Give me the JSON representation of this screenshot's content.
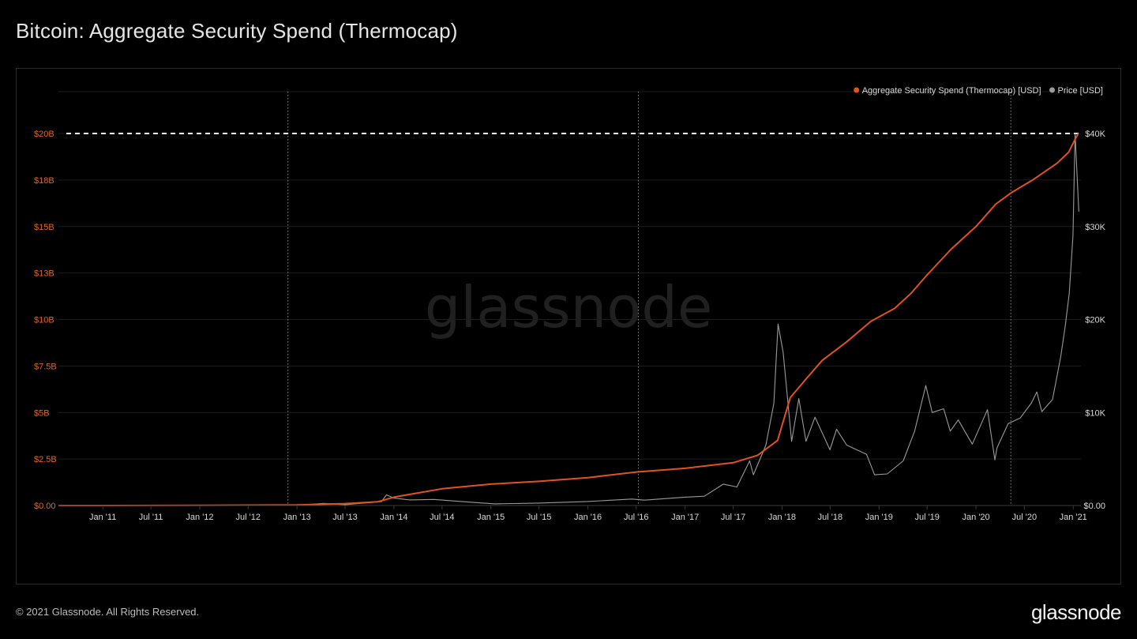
{
  "title": "Bitcoin: Aggregate Security Spend (Thermocap)",
  "footer": "© 2021 Glassnode. All Rights Reserved.",
  "brand": "glassnode",
  "watermark": "glassnode",
  "colors": {
    "thermocap": "#e0531f",
    "price": "#9a9a9a",
    "grid": "#1d1d1d",
    "left_axis_text": "#e0662c",
    "right_axis_text": "#d9d9d9",
    "background": "#000000"
  },
  "chart_data": {
    "type": "line",
    "xlabel": "",
    "x_range": [
      "2010-07-18",
      "2021-01-30"
    ],
    "x_ticks": [
      {
        "date": "2011-01-01",
        "label": "Jan '11"
      },
      {
        "date": "2011-07-01",
        "label": "Jul '11"
      },
      {
        "date": "2012-01-01",
        "label": "Jan '12"
      },
      {
        "date": "2012-07-01",
        "label": "Jul '12"
      },
      {
        "date": "2013-01-01",
        "label": "Jan '13"
      },
      {
        "date": "2013-07-01",
        "label": "Jul '13"
      },
      {
        "date": "2014-01-01",
        "label": "Jan '14"
      },
      {
        "date": "2014-07-01",
        "label": "Jul '14"
      },
      {
        "date": "2015-01-01",
        "label": "Jan '15"
      },
      {
        "date": "2015-07-01",
        "label": "Jul '15"
      },
      {
        "date": "2016-01-01",
        "label": "Jan '16"
      },
      {
        "date": "2016-07-01",
        "label": "Jul '16"
      },
      {
        "date": "2017-01-01",
        "label": "Jan '17"
      },
      {
        "date": "2017-07-01",
        "label": "Jul '17"
      },
      {
        "date": "2018-01-01",
        "label": "Jan '18"
      },
      {
        "date": "2018-07-01",
        "label": "Jul '18"
      },
      {
        "date": "2019-01-01",
        "label": "Jan '19"
      },
      {
        "date": "2019-07-01",
        "label": "Jul '19"
      },
      {
        "date": "2020-01-01",
        "label": "Jan '20"
      },
      {
        "date": "2020-07-01",
        "label": "Jul '20"
      },
      {
        "date": "2021-01-01",
        "label": "Jan '21"
      }
    ],
    "left_axis": {
      "ylim": [
        0,
        20000000000
      ],
      "ticks": [
        {
          "value": 0,
          "label": "$0.00"
        },
        {
          "value": 2500000000,
          "label": "$2.5B"
        },
        {
          "value": 5000000000,
          "label": "$5B"
        },
        {
          "value": 7500000000,
          "label": "$7.5B"
        },
        {
          "value": 10000000000,
          "label": "$10B"
        },
        {
          "value": 12500000000,
          "label": "$13B"
        },
        {
          "value": 15000000000,
          "label": "$15B"
        },
        {
          "value": 17500000000,
          "label": "$18B"
        },
        {
          "value": 20000000000,
          "label": "$20B"
        }
      ]
    },
    "right_axis": {
      "ylim": [
        0,
        40000
      ],
      "ticks": [
        {
          "value": 0,
          "label": "$0.00"
        },
        {
          "value": 10000,
          "label": "$10K"
        },
        {
          "value": 20000,
          "label": "$20K"
        },
        {
          "value": 30000,
          "label": "$30K"
        },
        {
          "value": 40000,
          "label": "$40K"
        }
      ]
    },
    "legend": "top-right",
    "reference_lines": {
      "horizontal_dashed_at_left_value": 20000000000,
      "vertical_dotted_dates": [
        "2012-11-28",
        "2016-07-09",
        "2020-05-11"
      ]
    },
    "series": [
      {
        "name": "Aggregate Security Spend (Thermocap) [USD]",
        "axis": "left",
        "x": [
          "2010-07-18",
          "2012-01-01",
          "2013-01-01",
          "2013-07-01",
          "2013-11-01",
          "2014-01-01",
          "2014-07-01",
          "2015-01-01",
          "2015-07-01",
          "2016-01-01",
          "2016-07-01",
          "2017-01-01",
          "2017-07-01",
          "2017-10-01",
          "2017-12-15",
          "2018-02-01",
          "2018-04-01",
          "2018-06-01",
          "2018-09-01",
          "2018-12-01",
          "2019-03-01",
          "2019-05-01",
          "2019-07-01",
          "2019-10-01",
          "2020-01-01",
          "2020-03-15",
          "2020-05-11",
          "2020-08-01",
          "2020-11-01",
          "2020-12-15",
          "2021-01-05",
          "2021-01-20"
        ],
        "values": [
          0,
          10000000,
          30000000,
          100000000,
          200000000,
          450000000,
          900000000,
          1150000000,
          1300000000,
          1500000000,
          1800000000,
          2000000000,
          2300000000,
          2700000000,
          3500000000,
          5800000000,
          6800000000,
          7800000000,
          8800000000,
          9900000000,
          10600000000,
          11400000000,
          12400000000,
          13800000000,
          15000000000,
          16200000000,
          16800000000,
          17500000000,
          18400000000,
          19000000000,
          19600000000,
          20000000000
        ]
      },
      {
        "name": "Price [USD]",
        "axis": "right",
        "x": [
          "2010-07-18",
          "2011-06-08",
          "2011-11-01",
          "2012-06-01",
          "2013-01-01",
          "2013-04-10",
          "2013-07-01",
          "2013-11-15",
          "2013-12-04",
          "2014-01-01",
          "2014-03-01",
          "2014-06-01",
          "2014-09-01",
          "2015-01-15",
          "2015-07-01",
          "2016-01-01",
          "2016-06-15",
          "2016-08-01",
          "2017-01-01",
          "2017-03-15",
          "2017-05-25",
          "2017-07-15",
          "2017-09-01",
          "2017-09-15",
          "2017-11-01",
          "2017-12-01",
          "2017-12-17",
          "2018-01-05",
          "2018-02-06",
          "2018-03-05",
          "2018-04-01",
          "2018-05-05",
          "2018-06-30",
          "2018-07-25",
          "2018-09-01",
          "2018-11-15",
          "2018-12-15",
          "2019-02-01",
          "2019-04-02",
          "2019-05-15",
          "2019-06-26",
          "2019-07-20",
          "2019-09-01",
          "2019-09-26",
          "2019-10-26",
          "2019-12-18",
          "2020-02-13",
          "2020-03-12",
          "2020-03-20",
          "2020-05-01",
          "2020-06-15",
          "2020-07-27",
          "2020-08-17",
          "2020-09-05",
          "2020-10-15",
          "2020-11-15",
          "2020-12-01",
          "2020-12-17",
          "2020-12-31",
          "2021-01-08",
          "2021-01-22"
        ],
        "values": [
          0.07,
          30,
          3,
          6,
          13,
          230,
          95,
          420,
          1150,
          800,
          600,
          650,
          450,
          180,
          260,
          430,
          700,
          580,
          900,
          1000,
          2300,
          2000,
          4800,
          3300,
          6500,
          11000,
          19500,
          16500,
          6900,
          11500,
          6900,
          9500,
          6000,
          8200,
          6500,
          5500,
          3300,
          3400,
          4800,
          8000,
          12900,
          10000,
          10400,
          8000,
          9200,
          6600,
          10300,
          4900,
          6200,
          8800,
          9400,
          11000,
          12200,
          10100,
          11400,
          16000,
          19100,
          22800,
          29000,
          40000,
          31600
        ]
      }
    ]
  }
}
